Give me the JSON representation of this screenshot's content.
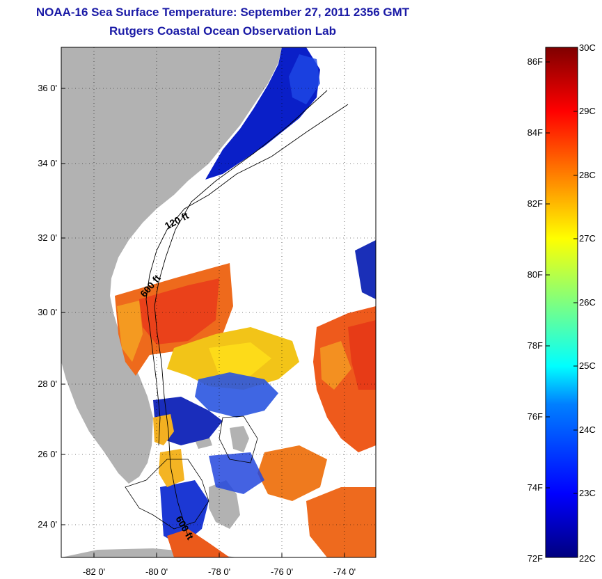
{
  "header": {
    "title": "NOAA-16 Sea Surface Temperature:  September 27, 2011 2356 GMT",
    "subtitle": "Rutgers Coastal Ocean Observation Lab"
  },
  "map": {
    "lat_ticks": [
      "36 0'",
      "34 0'",
      "32 0'",
      "30 0'",
      "28 0'",
      "26 0'",
      "24 0'"
    ],
    "lon_ticks": [
      "-82 0'",
      "-80 0'",
      "-78 0'",
      "-76 0'",
      "-74 0'"
    ],
    "contour_labels": [
      "120 ft",
      "600 ft",
      "600 ft"
    ],
    "land_color": "#b2b2b2",
    "background_color": "#ffffff"
  },
  "colorbar": {
    "fahrenheit_labels": [
      "86F",
      "84F",
      "82F",
      "80F",
      "78F",
      "76F",
      "74F",
      "72F"
    ],
    "celsius_labels": [
      "30C",
      "29C",
      "28C",
      "27C",
      "26C",
      "25C",
      "24C",
      "23C",
      "22C"
    ],
    "colors": [
      "#00007f",
      "#0000ff",
      "#007fff",
      "#00ffff",
      "#7fff7f",
      "#ffff00",
      "#ff7f00",
      "#ff0000",
      "#7f0000"
    ]
  }
}
